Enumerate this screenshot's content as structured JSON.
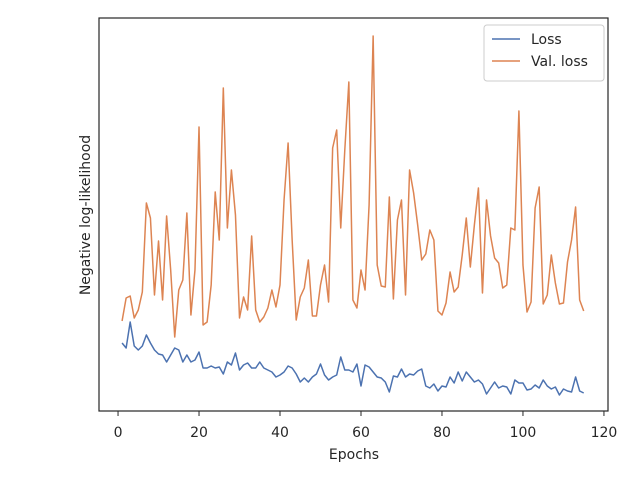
{
  "chart_data": {
    "type": "line",
    "xlabel": "Epochs",
    "ylabel": "Negative log-likelihood",
    "x": [
      1,
      2,
      3,
      4,
      5,
      6,
      7,
      8,
      9,
      10,
      11,
      12,
      13,
      14,
      15,
      16,
      17,
      18,
      19,
      20,
      21,
      22,
      23,
      24,
      25,
      26,
      27,
      28,
      29,
      30,
      31,
      32,
      33,
      34,
      35,
      36,
      37,
      38,
      39,
      40,
      41,
      42,
      43,
      44,
      45,
      46,
      47,
      48,
      49,
      50,
      51,
      52,
      53,
      54,
      55,
      56,
      57,
      58,
      59,
      60,
      61,
      62,
      63,
      64,
      65,
      66,
      67,
      68,
      69,
      70,
      71,
      72,
      73,
      74,
      75,
      76,
      77,
      78,
      79,
      80,
      81,
      82,
      83,
      84,
      85,
      86,
      87,
      88,
      89,
      90,
      91,
      92,
      93,
      94,
      95,
      96,
      97,
      98,
      99,
      100,
      101,
      102,
      103,
      104,
      105,
      106,
      107,
      108,
      109,
      110,
      111,
      112,
      113,
      114,
      115
    ],
    "series": [
      {
        "name": "Loss",
        "color": "#4c72b0",
        "values": [
          68,
          63,
          89,
          65,
          61,
          65,
          76,
          68,
          61,
          57,
          56,
          49,
          56,
          63,
          61,
          49,
          56,
          49,
          51,
          59,
          43,
          43,
          45,
          43,
          44,
          37,
          49,
          46,
          58,
          41,
          46,
          48,
          43,
          43,
          49,
          43,
          41,
          39,
          34,
          36,
          39,
          45,
          43,
          37,
          29,
          33,
          29,
          34,
          37,
          47,
          36,
          31,
          34,
          36,
          54,
          41,
          41,
          39,
          47,
          25,
          46,
          44,
          39,
          34,
          33,
          29,
          19,
          35,
          34,
          42,
          34,
          37,
          36,
          40,
          42,
          25,
          23,
          27,
          20,
          25,
          24,
          34,
          28,
          39,
          30,
          39,
          34,
          29,
          31,
          27,
          17,
          23,
          29,
          23,
          25,
          24,
          17,
          31,
          28,
          28,
          21,
          22,
          26,
          23,
          31,
          25,
          22,
          24,
          16,
          22,
          20,
          19,
          34,
          20,
          18
        ]
      },
      {
        "name": "Val. loss",
        "color": "#dd8452",
        "values": [
          90,
          113,
          115,
          93,
          101,
          119,
          208,
          193,
          116,
          170,
          111,
          195,
          141,
          74,
          121,
          131,
          198,
          96,
          141,
          284,
          86,
          89,
          126,
          219,
          171,
          323,
          183,
          241,
          196,
          93,
          114,
          101,
          175,
          101,
          89,
          94,
          103,
          121,
          104,
          126,
          211,
          268,
          171,
          91,
          114,
          123,
          151,
          95,
          95,
          126,
          146,
          109,
          263,
          281,
          183,
          261,
          329,
          111,
          103,
          141,
          121,
          206,
          375,
          146,
          125,
          124,
          214,
          112,
          191,
          211,
          116,
          241,
          218,
          186,
          151,
          157,
          181,
          171,
          100,
          96,
          108,
          139,
          119,
          124,
          156,
          193,
          144,
          186,
          223,
          118,
          211,
          175,
          153,
          148,
          123,
          126,
          183,
          181,
          300,
          146,
          99,
          109,
          203,
          224,
          107,
          116,
          156,
          128,
          107,
          108,
          149,
          171,
          204,
          111,
          100
        ]
      }
    ],
    "xlim": [
      -4.7,
      121
    ],
    "xticks": [
      0,
      20,
      40,
      60,
      80,
      100,
      120
    ],
    "ylim": [
      0,
      393
    ],
    "legend": "upper right",
    "grid": false
  }
}
